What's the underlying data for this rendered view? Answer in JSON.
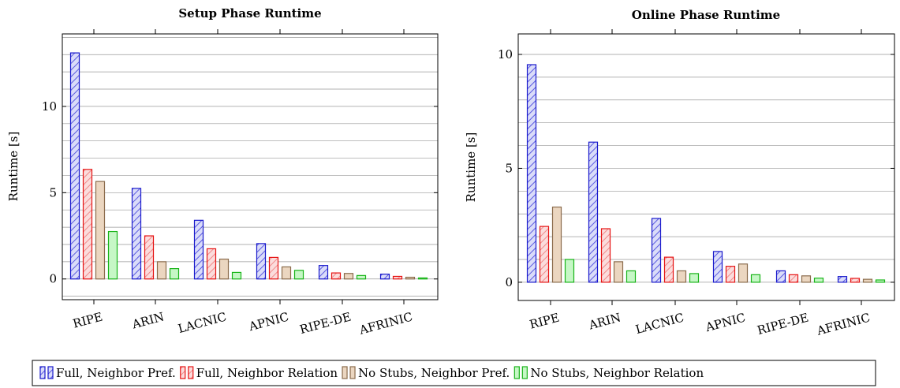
{
  "chart_data": [
    {
      "type": "bar",
      "title": "Setup Phase Runtime",
      "xlabel": "",
      "ylabel": "Runtime [s]",
      "categories": [
        "RIPE",
        "ARIN",
        "LACNIC",
        "APNIC",
        "RIPE-DE",
        "AFRINIC"
      ],
      "yticks": [
        0,
        5,
        10
      ],
      "ylim": [
        -1.2,
        14.2
      ],
      "grid": "horizontal",
      "series": [
        {
          "name": "Full, Neighbor Pref.",
          "values": [
            13.1,
            5.25,
            3.4,
            2.05,
            0.78,
            0.28
          ]
        },
        {
          "name": "Full, Neighbor Relation",
          "values": [
            6.35,
            2.5,
            1.75,
            1.25,
            0.35,
            0.15
          ]
        },
        {
          "name": "No Stubs, Neighbor Pref.",
          "values": [
            5.65,
            1.0,
            1.15,
            0.7,
            0.32,
            0.1
          ]
        },
        {
          "name": "No Stubs, Neighbor Relation",
          "values": [
            2.75,
            0.6,
            0.38,
            0.5,
            0.2,
            0.06
          ]
        }
      ]
    },
    {
      "type": "bar",
      "title": "Online Phase Runtime",
      "xlabel": "",
      "ylabel": "Runtime [s]",
      "categories": [
        "RIPE",
        "ARIN",
        "LACNIC",
        "APNIC",
        "RIPE-DE",
        "AFRINIC"
      ],
      "yticks": [
        0,
        5,
        10
      ],
      "ylim": [
        -0.8,
        10.9
      ],
      "grid": "horizontal",
      "series": [
        {
          "name": "Full, Neighbor Pref.",
          "values": [
            9.55,
            6.15,
            2.8,
            1.35,
            0.5,
            0.25
          ]
        },
        {
          "name": "Full, Neighbor Relation",
          "values": [
            2.45,
            2.35,
            1.1,
            0.7,
            0.33,
            0.17
          ]
        },
        {
          "name": "No Stubs, Neighbor Pref.",
          "values": [
            3.3,
            0.9,
            0.5,
            0.8,
            0.28,
            0.13
          ]
        },
        {
          "name": "No Stubs, Neighbor Relation",
          "values": [
            1.0,
            0.5,
            0.38,
            0.33,
            0.18,
            0.1
          ]
        }
      ]
    }
  ],
  "legend": {
    "placement": "bottom",
    "items": [
      {
        "label": "Full, Neighbor Pref.",
        "fill": "#c9ccf7",
        "stroke": "#1a1acc",
        "hatch": true
      },
      {
        "label": "Full, Neighbor Relation",
        "fill": "#f9c9c9",
        "stroke": "#e61414",
        "hatch": true
      },
      {
        "label": "No Stubs, Neighbor Pref.",
        "fill": "#ebd6c0",
        "stroke": "#8a6b4c",
        "hatch": false
      },
      {
        "label": "No Stubs, Neighbor Relation",
        "fill": "#c6f7c6",
        "stroke": "#18b418",
        "hatch": false
      }
    ]
  }
}
